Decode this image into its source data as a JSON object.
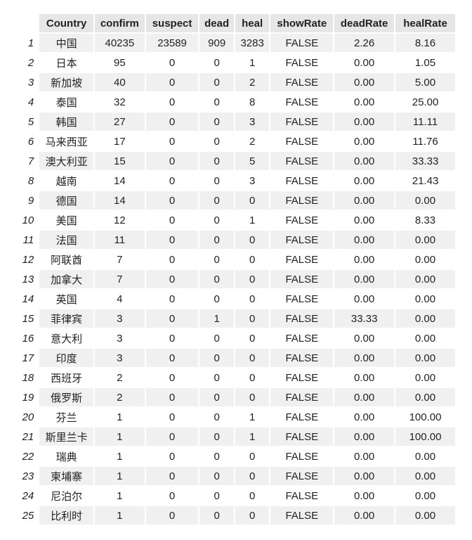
{
  "table": {
    "columns": [
      "",
      "Country",
      "confirm",
      "suspect",
      "dead",
      "heal",
      "showRate",
      "deadRate",
      "healRate"
    ],
    "rows": [
      [
        "1",
        "中国",
        "40235",
        "23589",
        "909",
        "3283",
        "FALSE",
        "2.26",
        "8.16"
      ],
      [
        "2",
        "日本",
        "95",
        "0",
        "0",
        "1",
        "FALSE",
        "0.00",
        "1.05"
      ],
      [
        "3",
        "新加坡",
        "40",
        "0",
        "0",
        "2",
        "FALSE",
        "0.00",
        "5.00"
      ],
      [
        "4",
        "泰国",
        "32",
        "0",
        "0",
        "8",
        "FALSE",
        "0.00",
        "25.00"
      ],
      [
        "5",
        "韩国",
        "27",
        "0",
        "0",
        "3",
        "FALSE",
        "0.00",
        "11.11"
      ],
      [
        "6",
        "马来西亚",
        "17",
        "0",
        "0",
        "2",
        "FALSE",
        "0.00",
        "11.76"
      ],
      [
        "7",
        "澳大利亚",
        "15",
        "0",
        "0",
        "5",
        "FALSE",
        "0.00",
        "33.33"
      ],
      [
        "8",
        "越南",
        "14",
        "0",
        "0",
        "3",
        "FALSE",
        "0.00",
        "21.43"
      ],
      [
        "9",
        "德国",
        "14",
        "0",
        "0",
        "0",
        "FALSE",
        "0.00",
        "0.00"
      ],
      [
        "10",
        "美国",
        "12",
        "0",
        "0",
        "1",
        "FALSE",
        "0.00",
        "8.33"
      ],
      [
        "11",
        "法国",
        "11",
        "0",
        "0",
        "0",
        "FALSE",
        "0.00",
        "0.00"
      ],
      [
        "12",
        "阿联酋",
        "7",
        "0",
        "0",
        "0",
        "FALSE",
        "0.00",
        "0.00"
      ],
      [
        "13",
        "加拿大",
        "7",
        "0",
        "0",
        "0",
        "FALSE",
        "0.00",
        "0.00"
      ],
      [
        "14",
        "英国",
        "4",
        "0",
        "0",
        "0",
        "FALSE",
        "0.00",
        "0.00"
      ],
      [
        "15",
        "菲律宾",
        "3",
        "0",
        "1",
        "0",
        "FALSE",
        "33.33",
        "0.00"
      ],
      [
        "16",
        "意大利",
        "3",
        "0",
        "0",
        "0",
        "FALSE",
        "0.00",
        "0.00"
      ],
      [
        "17",
        "印度",
        "3",
        "0",
        "0",
        "0",
        "FALSE",
        "0.00",
        "0.00"
      ],
      [
        "18",
        "西班牙",
        "2",
        "0",
        "0",
        "0",
        "FALSE",
        "0.00",
        "0.00"
      ],
      [
        "19",
        "俄罗斯",
        "2",
        "0",
        "0",
        "0",
        "FALSE",
        "0.00",
        "0.00"
      ],
      [
        "20",
        "芬兰",
        "1",
        "0",
        "0",
        "1",
        "FALSE",
        "0.00",
        "100.00"
      ],
      [
        "21",
        "斯里兰卡",
        "1",
        "0",
        "0",
        "1",
        "FALSE",
        "0.00",
        "100.00"
      ],
      [
        "22",
        "瑞典",
        "1",
        "0",
        "0",
        "0",
        "FALSE",
        "0.00",
        "0.00"
      ],
      [
        "23",
        "柬埔寨",
        "1",
        "0",
        "0",
        "0",
        "FALSE",
        "0.00",
        "0.00"
      ],
      [
        "24",
        "尼泊尔",
        "1",
        "0",
        "0",
        "0",
        "FALSE",
        "0.00",
        "0.00"
      ],
      [
        "25",
        "比利时",
        "1",
        "0",
        "0",
        "0",
        "FALSE",
        "0.00",
        "0.00"
      ]
    ]
  }
}
